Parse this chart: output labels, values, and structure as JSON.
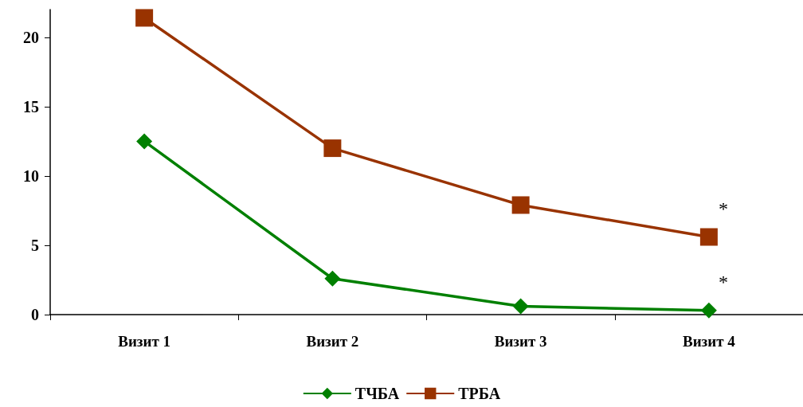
{
  "chart_data": {
    "type": "line",
    "categories": [
      "Визит 1",
      "Визит 2",
      "Визит 3",
      "Визит 4"
    ],
    "series": [
      {
        "name": "ТЧБА",
        "color": "#008000",
        "marker": "diamond",
        "values": [
          12.5,
          2.6,
          0.6,
          0.3
        ]
      },
      {
        "name": "ТРБА",
        "color": "#993300",
        "marker": "square",
        "values": [
          21.4,
          12.0,
          7.9,
          5.6
        ]
      }
    ],
    "ylim": [
      0,
      22
    ],
    "yticks": [
      0,
      5,
      10,
      15,
      20
    ],
    "grid": false,
    "legend": "bottom",
    "line_style": "solid",
    "annotations": [
      "*",
      "*"
    ]
  }
}
